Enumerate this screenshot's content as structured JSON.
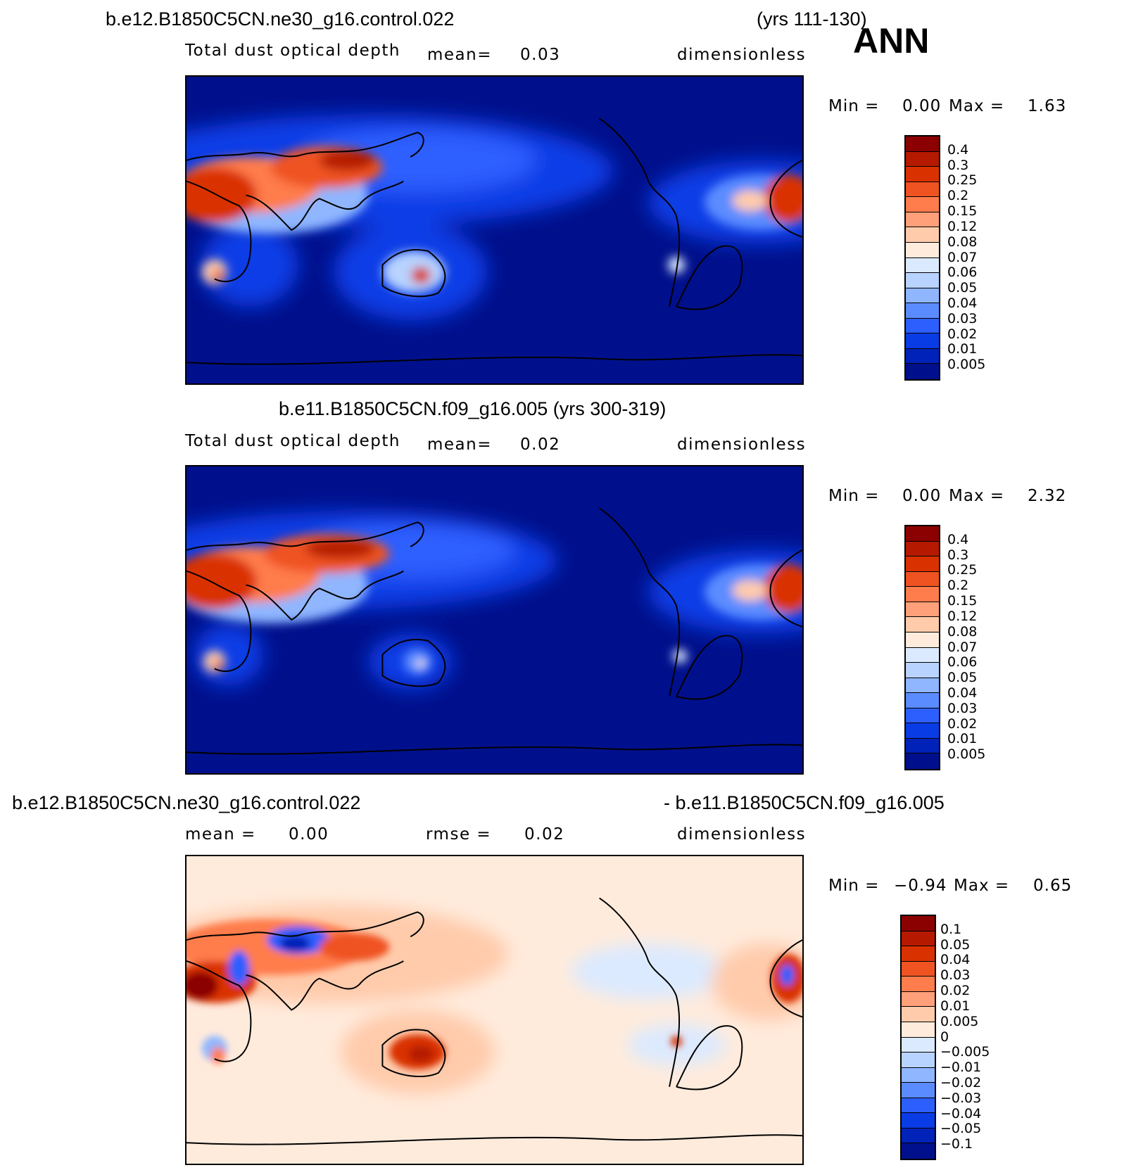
{
  "season": "ANN",
  "panels": [
    {
      "case_left": "b.e12.B1850C5CN.ne30_g16.control.022",
      "case_right": "(yrs 111-130)",
      "variable": "Total dust optical depth",
      "stat1_label": "mean=",
      "stat1_value": "0.03",
      "units": "dimensionless",
      "min_label": "Min =",
      "min_value": "0.00",
      "max_label": "Max =",
      "max_value": "1.63",
      "levels": [
        "0.4",
        "0.3",
        "0.25",
        "0.2",
        "0.15",
        "0.12",
        "0.08",
        "0.07",
        "0.06",
        "0.05",
        "0.04",
        "0.03",
        "0.02",
        "0.01",
        "0.005"
      ],
      "colors": [
        "#8b0000",
        "#b51a00",
        "#d93200",
        "#ef5322",
        "#ff7c4c",
        "#ffa07a",
        "#ffcbab",
        "#ffebdc",
        "#dbeaff",
        "#b8d3ff",
        "#8fb6ff",
        "#5b8cff",
        "#2d5fff",
        "#0a3ce6",
        "#0022b8",
        "#00108c"
      ]
    },
    {
      "case_left": "b.e11.B1850C5CN.f09_g16.005 (yrs 300-319)",
      "variable": "Total dust optical depth",
      "stat1_label": "mean=",
      "stat1_value": "0.02",
      "units": "dimensionless",
      "min_label": "Min =",
      "min_value": "0.00",
      "max_label": "Max =",
      "max_value": "2.32",
      "levels": [
        "0.4",
        "0.3",
        "0.25",
        "0.2",
        "0.15",
        "0.12",
        "0.08",
        "0.07",
        "0.06",
        "0.05",
        "0.04",
        "0.03",
        "0.02",
        "0.01",
        "0.005"
      ],
      "colors": [
        "#8b0000",
        "#b51a00",
        "#d93200",
        "#ef5322",
        "#ff7c4c",
        "#ffa07a",
        "#ffcbab",
        "#ffebdc",
        "#dbeaff",
        "#b8d3ff",
        "#8fb6ff",
        "#5b8cff",
        "#2d5fff",
        "#0a3ce6",
        "#0022b8",
        "#00108c"
      ]
    },
    {
      "case_left": "b.e12.B1850C5CN.ne30_g16.control.022",
      "case_right": "- b.e11.B1850C5CN.f09_g16.005",
      "stat1_label": "mean =",
      "stat1_value": "0.00",
      "stat2_label": "rmse =",
      "stat2_value": "0.02",
      "units": "dimensionless",
      "min_label": "Min =",
      "min_value": "−0.94",
      "max_label": "Max =",
      "max_value": "0.65",
      "levels": [
        "0.1",
        "0.05",
        "0.04",
        "0.03",
        "0.02",
        "0.01",
        "0.005",
        "0",
        "−0.005",
        "−0.01",
        "−0.02",
        "−0.03",
        "−0.04",
        "−0.05",
        "−0.1"
      ],
      "colors": [
        "#8b0000",
        "#b51a00",
        "#d93200",
        "#ef5322",
        "#ff7c4c",
        "#ffa07a",
        "#ffcbab",
        "#ffebdc",
        "#dbeaff",
        "#b8d3ff",
        "#8fb6ff",
        "#5b8cff",
        "#2d5fff",
        "#0a3ce6",
        "#0022b8",
        "#00108c"
      ]
    }
  ],
  "map_colors": {
    "ocean_low": "#00108c",
    "diff_background": "#ffebdc",
    "coast": "#000000"
  }
}
